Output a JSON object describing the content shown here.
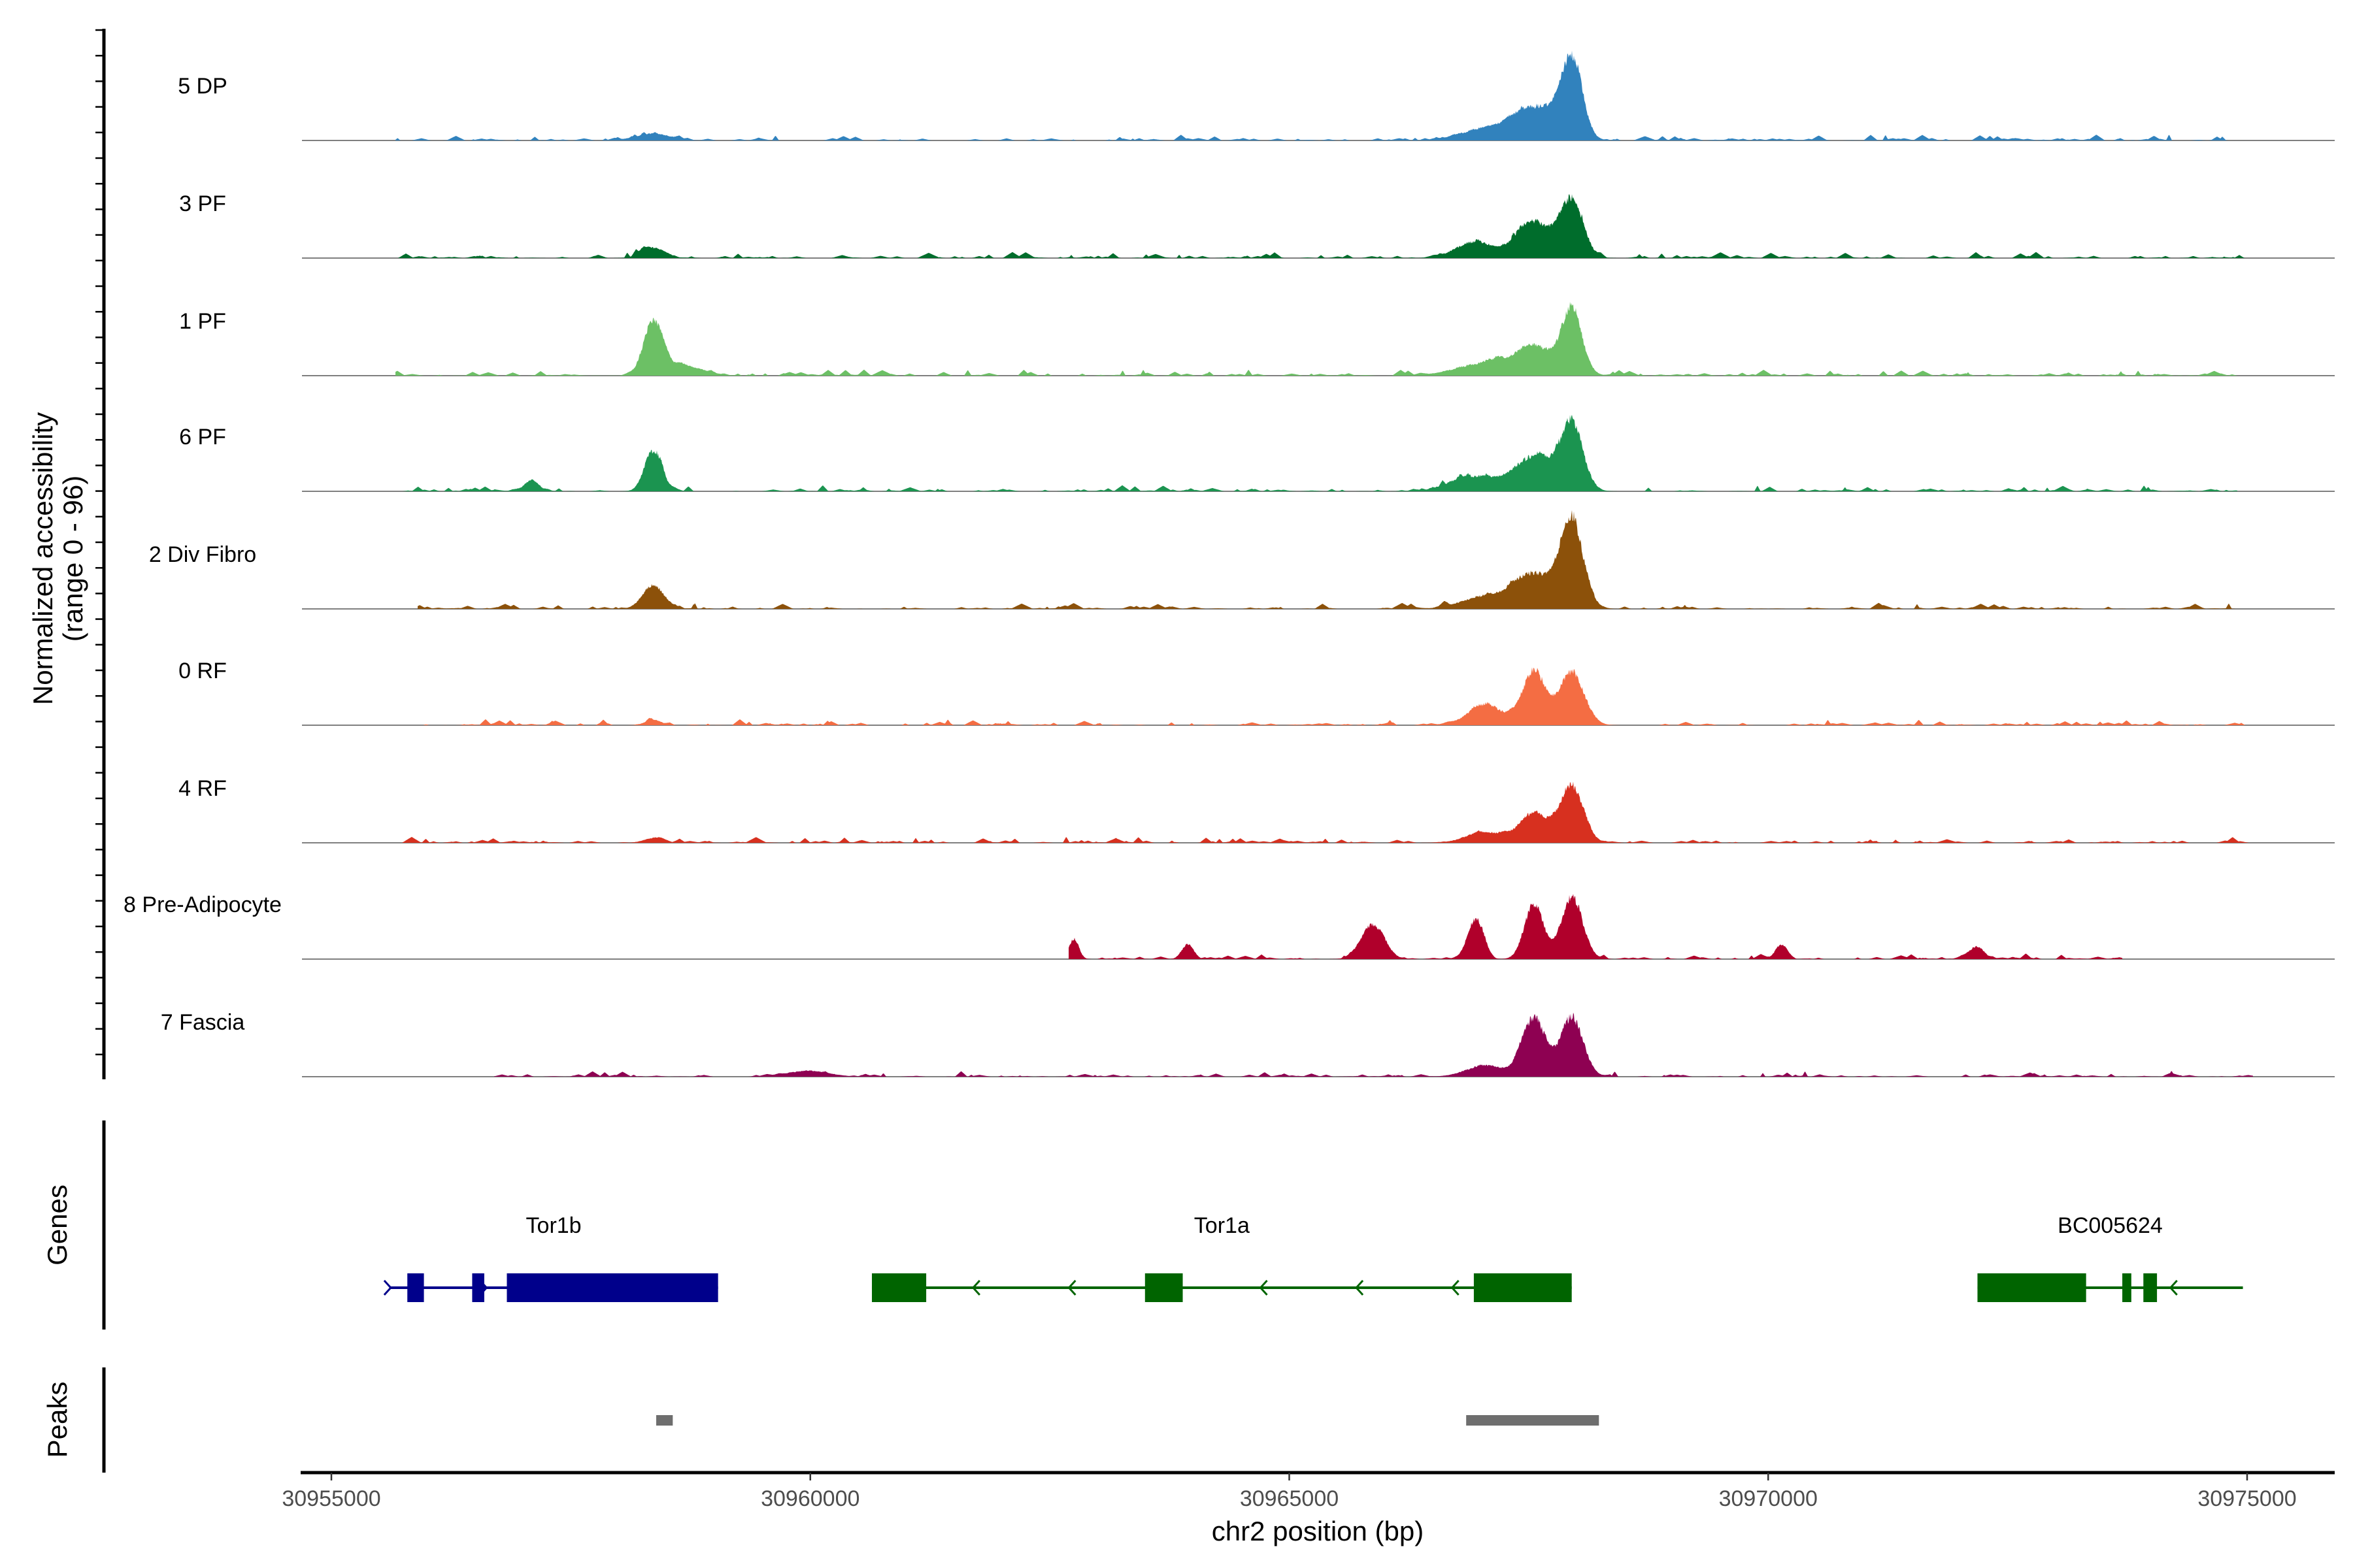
{
  "chart_data": {
    "type": "area",
    "title": "",
    "xlabel": "chr2 position (bp)",
    "ylabel": "Normalized accessibility",
    "ylabel_sub": "(range 0 - 96)",
    "xlim": [
      30954900,
      30976100
    ],
    "ylim": [
      0,
      96
    ],
    "x_ticks": [
      30955000,
      30960000,
      30965000,
      30970000,
      30975000
    ],
    "x_tick_labels": [
      "30955000",
      "30960000",
      "30965000",
      "30970000",
      "30975000"
    ],
    "tracks": [
      {
        "name": "5 DP",
        "color": "#3182bd",
        "range": [
          30955667,
          30974816
        ],
        "peaks": [
          [
            30967949,
            70,
            110
          ],
          [
            30967556,
            28,
            220
          ],
          [
            30967052,
            10,
            250
          ],
          [
            30958360,
            6,
            180
          ]
        ]
      },
      {
        "name": "3 PF",
        "color": "#006d2c",
        "range": [
          30955667,
          30975060
        ],
        "peaks": [
          [
            30967949,
            50,
            120
          ],
          [
            30967556,
            32,
            180
          ],
          [
            30966942,
            14,
            200
          ],
          [
            30958360,
            9,
            120
          ]
        ]
      },
      {
        "name": "1 PF",
        "color": "#6cc065",
        "range": [
          30955667,
          30974900
        ],
        "peaks": [
          [
            30967949,
            55,
            110
          ],
          [
            30967556,
            25,
            180
          ],
          [
            30967052,
            11,
            300
          ],
          [
            30958360,
            45,
            100
          ],
          [
            30958700,
            8,
            200
          ]
        ]
      },
      {
        "name": "6 PF",
        "color": "#1b9450",
        "range": [
          30955667,
          30974900
        ],
        "peaks": [
          [
            30967949,
            55,
            120
          ],
          [
            30967556,
            30,
            200
          ],
          [
            30966942,
            13,
            250
          ],
          [
            30958360,
            36,
            90
          ],
          [
            30957084,
            6,
            100
          ]
        ]
      },
      {
        "name": "2 Div Fibro",
        "color": "#8c510a",
        "range": [
          30955900,
          30975060
        ],
        "peaks": [
          [
            30967949,
            76,
            120
          ],
          [
            30967556,
            30,
            200
          ],
          [
            30967052,
            11,
            250
          ],
          [
            30958360,
            21,
            110
          ]
        ]
      },
      {
        "name": "0 RF",
        "color": "#f46d43",
        "range": [
          30955667,
          30975060
        ],
        "peaks": [
          [
            30967949,
            46,
            130
          ],
          [
            30967556,
            47,
            120
          ],
          [
            30967052,
            18,
            180
          ],
          [
            30958360,
            5,
            80
          ]
        ]
      },
      {
        "name": "4 RF",
        "color": "#d7301f",
        "range": [
          30955667,
          30975060
        ],
        "peaks": [
          [
            30967949,
            50,
            120
          ],
          [
            30967556,
            26,
            150
          ],
          [
            30967052,
            9,
            200
          ],
          [
            30958360,
            4,
            100
          ]
        ]
      },
      {
        "name": "8 Pre-Adipocyte",
        "color": "#b0002b",
        "range": [
          30962700,
          30973700
        ],
        "peaks": [
          [
            30967949,
            55,
            110
          ],
          [
            30967556,
            47,
            100
          ],
          [
            30966942,
            35,
            80
          ],
          [
            30965871,
            30,
            120
          ],
          [
            30962753,
            18,
            50
          ],
          [
            30963934,
            12,
            60
          ],
          [
            30970123,
            10,
            60
          ],
          [
            30972170,
            10,
            80
          ]
        ]
      },
      {
        "name": "7 Fascia",
        "color": "#8e0152",
        "range": [
          30956700,
          30975060
        ],
        "peaks": [
          [
            30967949,
            51,
            120
          ],
          [
            30967556,
            52,
            120
          ],
          [
            30967052,
            10,
            200
          ],
          [
            30960000,
            5,
            200
          ]
        ]
      }
    ],
    "genes_label": "Genes",
    "genes": [
      {
        "name": "Tor1b",
        "strand": "+",
        "color": "#00008b",
        "start": 30955604,
        "end": 30959037,
        "exons": [
          [
            30955793,
            30955966
          ],
          [
            30956470,
            30956596
          ],
          [
            30956832,
            30959037
          ]
        ],
        "arrows": [
          30955620,
          30956620
        ]
      },
      {
        "name": "Tor1a",
        "strand": "-",
        "color": "#006400",
        "start": 30960643,
        "end": 30967949,
        "exons": [
          [
            30960643,
            30961210
          ],
          [
            30963494,
            30963888
          ],
          [
            30966927,
            30967949
          ]
        ],
        "arrows": [
          30961700,
          30962700,
          30964700,
          30965700,
          30966700
        ]
      },
      {
        "name": "BC005624",
        "strand": "-",
        "color": "#006400",
        "start": 30972185,
        "end": 30974956,
        "exons": [
          [
            30972185,
            30973319
          ],
          [
            30973697,
            30973791
          ],
          [
            30973917,
            30974059
          ]
        ],
        "arrows": [
          30974200
        ]
      }
    ],
    "peaks_label": "Peaks",
    "peak_regions": [
      [
        30958391,
        30958564
      ],
      [
        30966847,
        30968233
      ]
    ],
    "peak_color": "#6e6e6e"
  }
}
